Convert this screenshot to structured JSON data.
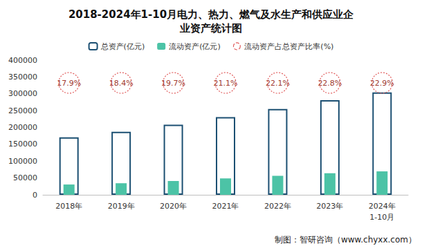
{
  "chart_data": {
    "type": "bar",
    "title": "2018-2024年1-10月电力、热力、燃气及水生产和供应业企\n业资产统计图",
    "categories": [
      "2018年",
      "2019年",
      "2020年",
      "2021年",
      "2022年",
      "2023年",
      "2024年\n1-10月"
    ],
    "series": [
      {
        "name": "总资产(亿元)",
        "type": "bar",
        "color": "#1b4f72",
        "values": [
          171000,
          187000,
          208000,
          231000,
          255000,
          281000,
          304000
        ]
      },
      {
        "name": "流动资产(亿元)",
        "type": "bar",
        "color": "#4cc3a6",
        "values": [
          30600,
          34400,
          41000,
          48700,
          56400,
          64100,
          69600
        ]
      },
      {
        "name": "流动资产占总资产比率(%)",
        "type": "scatter",
        "marker": "circle",
        "color": "#e05a5a",
        "data_labels": true,
        "values": [
          17.9,
          18.4,
          19.7,
          21.1,
          22.1,
          22.8,
          22.9
        ],
        "value_labels": [
          "17.9%",
          "18.4%",
          "19.7%",
          "21.1%",
          "22.1%",
          "22.8%",
          "22.9%"
        ]
      }
    ],
    "ylim": [
      0,
      400000
    ],
    "yticks": [
      0,
      50000,
      100000,
      150000,
      200000,
      250000,
      300000,
      350000,
      400000
    ],
    "grid": false,
    "legend": "top",
    "annotations": [
      "制图：智研咨询（www.chyxx.com）"
    ]
  }
}
